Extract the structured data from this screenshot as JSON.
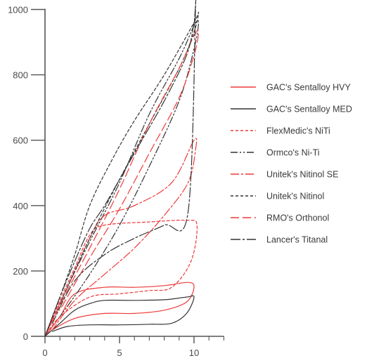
{
  "chart_data": {
    "type": "line",
    "title": "",
    "xlabel": "",
    "ylabel": "",
    "xlim": [
      0,
      12
    ],
    "ylim": [
      0,
      1000
    ],
    "x_ticks": [
      0,
      5,
      10
    ],
    "y_ticks": [
      0,
      200,
      400,
      600,
      800,
      1000
    ],
    "grid": false,
    "legend_position": "right",
    "series": [
      {
        "name": "GAC's Sentalloy HVY",
        "color": "#ee3a3a",
        "dash": "solid",
        "x": [
          0,
          1,
          2,
          4,
          6,
          8,
          9.6,
          10,
          9.5,
          8,
          6,
          4,
          2,
          0.5
        ],
        "y": [
          0,
          60,
          130,
          150,
          150,
          155,
          165,
          150,
          105,
          80,
          70,
          70,
          55,
          20
        ]
      },
      {
        "name": "GAC's Sentalloy MED",
        "color": "#333333",
        "dash": "solid",
        "x": [
          0,
          1,
          2,
          3,
          4,
          6,
          8,
          9.5,
          10,
          9.5,
          8.5,
          7,
          5,
          3,
          1.5,
          0.5
        ],
        "y": [
          0,
          40,
          80,
          100,
          110,
          110,
          112,
          120,
          120,
          70,
          40,
          37,
          35,
          35,
          30,
          15
        ]
      },
      {
        "name": "FlexMedic's NiTi",
        "color": "#ee3a3a",
        "dash": "4,3",
        "x": [
          0,
          1,
          2,
          3,
          4,
          7,
          9.5,
          10.2,
          9.8,
          8.5,
          7,
          5,
          3,
          1,
          0
        ],
        "y": [
          0,
          110,
          210,
          310,
          340,
          350,
          355,
          340,
          230,
          150,
          140,
          130,
          120,
          60,
          0
        ]
      },
      {
        "name": "Ormco's Ni-Ti",
        "color": "#333333",
        "dash": "10,3,2,3,2,3",
        "x": [
          0,
          1.5,
          3,
          5,
          7,
          9,
          10,
          10.3,
          10,
          9,
          7,
          5,
          3,
          1
        ],
        "y": [
          0,
          150,
          290,
          470,
          680,
          850,
          950,
          960,
          880,
          720,
          520,
          340,
          190,
          60
        ]
      },
      {
        "name": "Unitek's Nitinol SE",
        "color": "#ee3a3a",
        "dash": "12,3,3,3",
        "x": [
          0,
          1,
          2,
          3,
          4,
          6,
          8.5,
          10,
          10.1,
          9.6,
          8,
          6,
          4,
          2,
          0.5
        ],
        "y": [
          0,
          100,
          200,
          300,
          370,
          400,
          470,
          600,
          570,
          470,
          370,
          270,
          190,
          110,
          20
        ]
      },
      {
        "name": "Unitek's Nitinol",
        "color": "#333333",
        "dash": "4,3",
        "x": [
          0,
          1,
          2,
          3,
          4.5,
          6,
          8,
          10,
          10.3,
          10,
          9,
          7,
          5,
          3,
          1
        ],
        "y": [
          0,
          120,
          250,
          400,
          540,
          660,
          800,
          960,
          990,
          930,
          820,
          650,
          480,
          300,
          100
        ]
      },
      {
        "name": "RMO's Orthonol",
        "color": "#ee3a3a",
        "dash": "12,5",
        "x": [
          0,
          1.5,
          3,
          5,
          7,
          9,
          10,
          10.3,
          10,
          9,
          7,
          5,
          3,
          1
        ],
        "y": [
          0,
          140,
          270,
          450,
          650,
          820,
          920,
          930,
          860,
          730,
          560,
          390,
          240,
          80
        ]
      },
      {
        "name": "Lancer's Titanal",
        "color": "#333333",
        "dash": "14,3,3,3",
        "x": [
          0,
          1,
          2,
          3,
          4,
          5,
          6.5,
          8,
          9.5,
          10,
          10.1,
          9.6,
          8,
          6,
          4,
          2,
          0.5
        ],
        "y": [
          0,
          120,
          230,
          330,
          400,
          480,
          600,
          720,
          860,
          960,
          1000,
          380,
          340,
          300,
          250,
          170,
          40
        ]
      }
    ]
  }
}
